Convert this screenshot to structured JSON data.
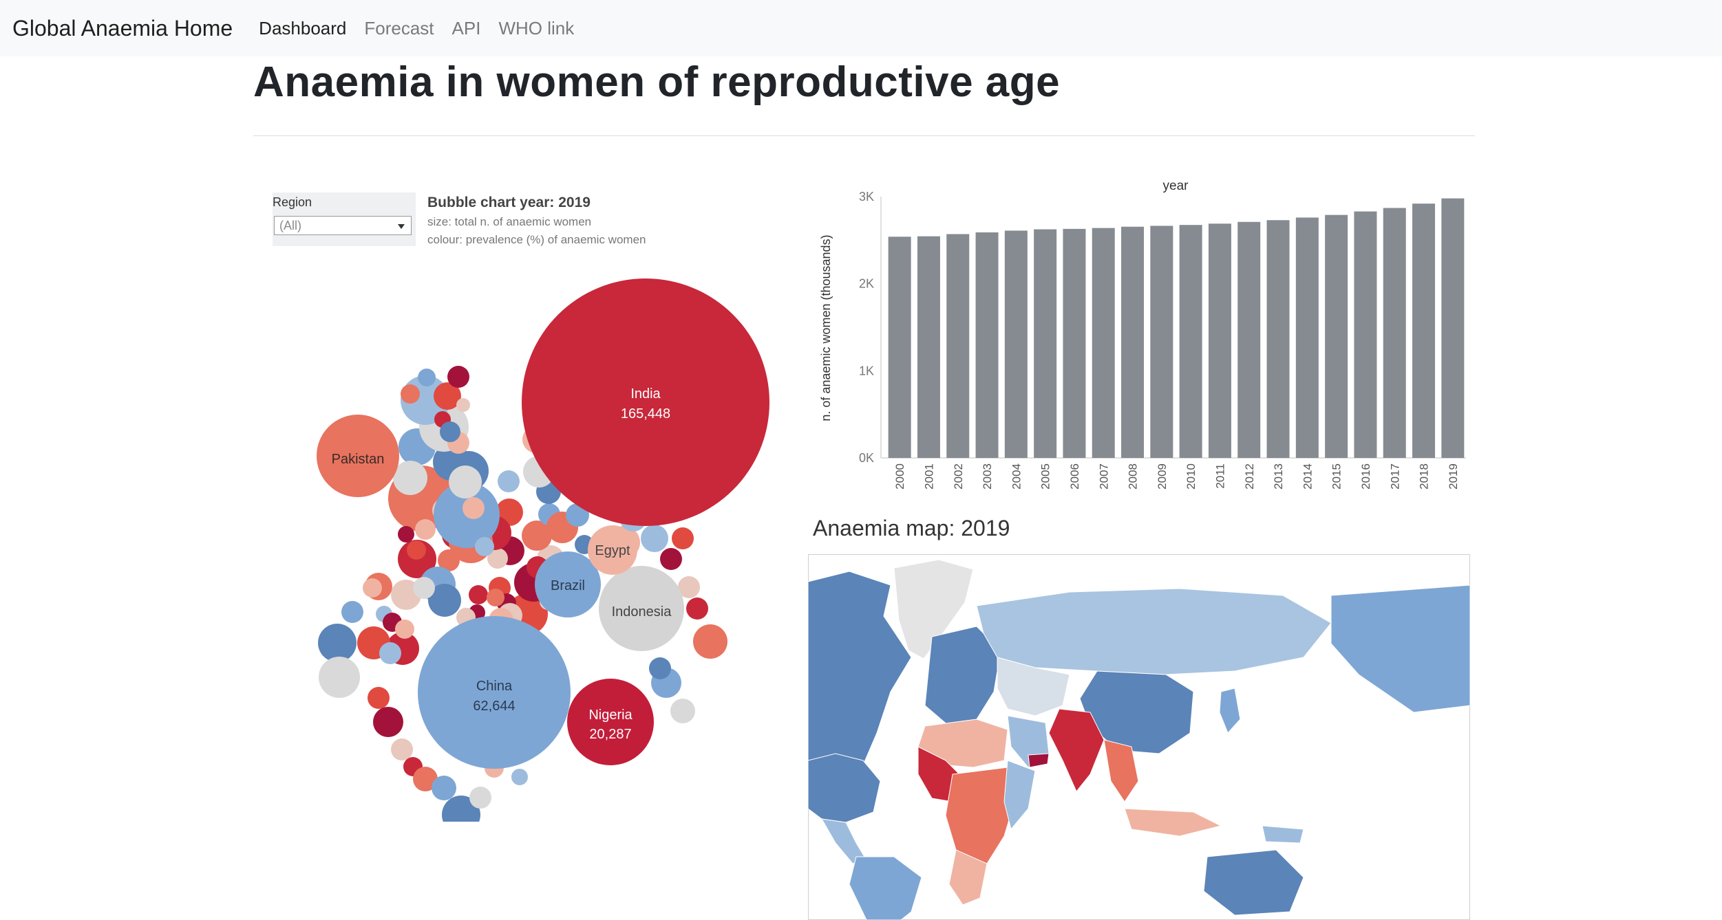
{
  "nav": {
    "brand": "Global Anaemia Home",
    "links": [
      "Dashboard",
      "Forecast",
      "API",
      "WHO link"
    ]
  },
  "page": {
    "title": "Anaemia in women of reproductive age"
  },
  "filter": {
    "label": "Region",
    "value": "(All)"
  },
  "bubble": {
    "year_label": "Bubble chart year: 2019",
    "size_note": "size: total n. of anaemic women",
    "colour_note": "colour: prevalence (%) of anaemic women",
    "colors": {
      "high": "#c8283a",
      "mid": "#e8735f",
      "neutral": "#d9d9d9",
      "low": "#7ea6d4",
      "lowdark": "#5b84b8"
    },
    "labeled": [
      {
        "name": "India",
        "value": "165,448"
      },
      {
        "name": "China",
        "value": "62,644"
      },
      {
        "name": "Nigeria",
        "value": "20,287"
      },
      {
        "name": "Pakistan",
        "value": ""
      },
      {
        "name": "Indonesia",
        "value": ""
      },
      {
        "name": "Brazil",
        "value": ""
      },
      {
        "name": "Egypt",
        "value": ""
      }
    ]
  },
  "chart_data": {
    "type": "bar",
    "title": "year",
    "xlabel": "year",
    "ylabel": "n. of anaemic women (thousands)",
    "categories": [
      "2000",
      "2001",
      "2002",
      "2003",
      "2004",
      "2005",
      "2006",
      "2007",
      "2008",
      "2009",
      "2010",
      "2011",
      "2012",
      "2013",
      "2014",
      "2015",
      "2016",
      "2017",
      "2018",
      "2019"
    ],
    "values": [
      2540,
      2545,
      2570,
      2590,
      2610,
      2625,
      2630,
      2640,
      2655,
      2665,
      2675,
      2690,
      2710,
      2730,
      2760,
      2790,
      2830,
      2870,
      2920,
      2980
    ],
    "yticks": [
      "0K",
      "1K",
      "2K",
      "3K"
    ],
    "ylim": [
      0,
      3000
    ],
    "color": "#868b91",
    "grid": false
  },
  "map": {
    "title": "Anaemia map: 2019"
  }
}
